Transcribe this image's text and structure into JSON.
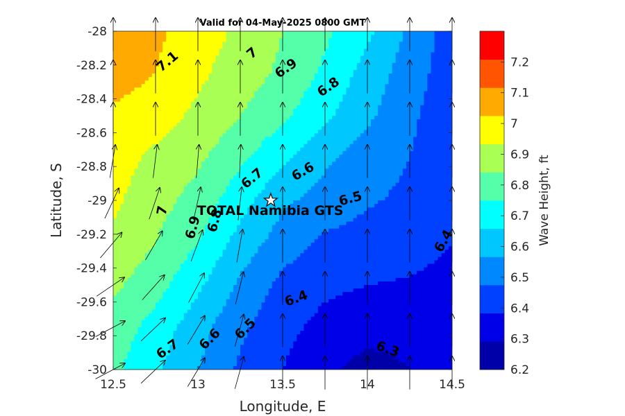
{
  "chart_data": {
    "type": "contour",
    "title": "Valid for 04-May-2025 0800 GMT",
    "xlabel": "Longitude, E",
    "ylabel": "Latitude, S",
    "colorbar_label": "Wave Height, ft",
    "xlim": [
      12.5,
      14.5
    ],
    "ylim": [
      -30,
      -28
    ],
    "x_ticks": [
      "12.5",
      "13",
      "13.5",
      "14",
      "14.5"
    ],
    "y_ticks": [
      "-28",
      "-28.2",
      "-28.4",
      "-28.6",
      "-28.8",
      "-29",
      "-29.2",
      "-29.4",
      "-29.6",
      "-29.8",
      "-30"
    ],
    "colorbar_ticks": [
      "6.2",
      "6.3",
      "6.4",
      "6.5",
      "6.6",
      "6.7",
      "6.8",
      "6.9",
      "7",
      "7.1",
      "7.2"
    ],
    "levels": [
      6.2,
      6.3,
      6.4,
      6.5,
      6.6,
      6.7,
      6.8,
      6.9,
      7.0,
      7.1,
      7.2,
      7.3
    ],
    "level_colors": [
      "#0000a8",
      "#0000e8",
      "#0040ff",
      "#0088ff",
      "#00c8ff",
      "#00ffff",
      "#55ffaa",
      "#aaff55",
      "#ffff00",
      "#ffaa00",
      "#ff5500",
      "#ff0000"
    ],
    "grid_lon": [
      12.5,
      12.75,
      13.0,
      13.25,
      13.5,
      13.75,
      14.0,
      14.25,
      14.5
    ],
    "grid_lat": [
      -28.0,
      -28.25,
      -28.5,
      -28.75,
      -29.0,
      -29.25,
      -29.5,
      -29.75,
      -30.0
    ],
    "wave_height": [
      [
        7.2,
        7.12,
        7.05,
        6.98,
        6.9,
        6.82,
        6.72,
        6.58,
        6.45
      ],
      [
        7.15,
        7.1,
        7.02,
        6.95,
        6.88,
        6.78,
        6.66,
        6.55,
        6.44
      ],
      [
        7.08,
        7.04,
        6.98,
        6.9,
        6.82,
        6.72,
        6.62,
        6.52,
        6.43
      ],
      [
        7.04,
        6.98,
        6.92,
        6.82,
        6.72,
        6.62,
        6.55,
        6.5,
        6.42
      ],
      [
        7.02,
        6.94,
        6.86,
        6.74,
        6.62,
        6.56,
        6.51,
        6.48,
        6.41
      ],
      [
        6.98,
        6.9,
        6.8,
        6.66,
        6.55,
        6.48,
        6.46,
        6.44,
        6.4
      ],
      [
        6.92,
        6.84,
        6.72,
        6.58,
        6.47,
        6.42,
        6.4,
        6.39,
        6.37
      ],
      [
        6.86,
        6.76,
        6.64,
        6.52,
        6.43,
        6.37,
        6.34,
        6.33,
        6.32
      ],
      [
        6.82,
        6.72,
        6.6,
        6.48,
        6.4,
        6.32,
        6.26,
        6.3,
        6.31
      ]
    ],
    "contour_labels": [
      {
        "text": "7.1",
        "lon": 12.82,
        "lat": -28.18,
        "angle": -40
      },
      {
        "text": "7",
        "lon": 13.32,
        "lat": -28.13,
        "angle": -40
      },
      {
        "text": "6.9",
        "lon": 13.52,
        "lat": -28.22,
        "angle": -35
      },
      {
        "text": "6.8",
        "lon": 13.77,
        "lat": -28.33,
        "angle": -35
      },
      {
        "text": "6.7",
        "lon": 13.32,
        "lat": -28.87,
        "angle": -40
      },
      {
        "text": "6.6",
        "lon": 13.62,
        "lat": -28.83,
        "angle": -30
      },
      {
        "text": "6.5",
        "lon": 13.9,
        "lat": -28.99,
        "angle": -15
      },
      {
        "text": "6.4",
        "lon": 14.45,
        "lat": -29.24,
        "angle": -60
      },
      {
        "text": "7",
        "lon": 12.79,
        "lat": -29.06,
        "angle": -80
      },
      {
        "text": "6.9",
        "lon": 12.97,
        "lat": -29.16,
        "angle": -75
      },
      {
        "text": "6.8",
        "lon": 13.1,
        "lat": -29.12,
        "angle": -75
      },
      {
        "text": "6.4",
        "lon": 13.58,
        "lat": -29.58,
        "angle": -20
      },
      {
        "text": "6.7",
        "lon": 12.82,
        "lat": -29.88,
        "angle": -35
      },
      {
        "text": "6.6",
        "lon": 13.07,
        "lat": -29.82,
        "angle": -45
      },
      {
        "text": "6.5",
        "lon": 13.28,
        "lat": -29.76,
        "angle": -45
      },
      {
        "text": "6.3",
        "lon": 14.12,
        "lat": -29.88,
        "angle": 20
      }
    ],
    "station": {
      "name": "TOTAL Namibia GTS",
      "lon": 13.43,
      "lat": -29.0
    },
    "direction_field": "wave vectors pointing north, veering to north-east in the south-west corner"
  }
}
